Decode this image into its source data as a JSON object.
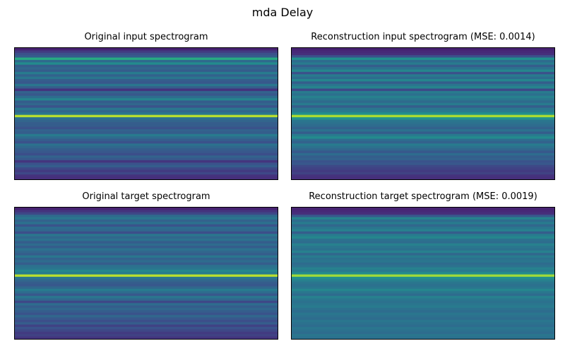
{
  "figure": {
    "title": "mda Delay"
  },
  "chart_data": [
    {
      "type": "heatmap",
      "title": "Original input spectrogram",
      "colormap": "viridis",
      "grid": false,
      "axes_visible": false,
      "bands": [
        0.1,
        0.18,
        0.25,
        0.3,
        0.62,
        0.35,
        0.48,
        0.3,
        0.34,
        0.3,
        0.42,
        0.32,
        0.4,
        0.3,
        0.28,
        0.4,
        0.3,
        0.15,
        0.32,
        0.28,
        0.36,
        0.45,
        0.3,
        0.34,
        0.26,
        0.4,
        0.34,
        0.4,
        0.9,
        0.38,
        0.33,
        0.3,
        0.3,
        0.26,
        0.32,
        0.3,
        0.42,
        0.36,
        0.3,
        0.25,
        0.38,
        0.34,
        0.3,
        0.28,
        0.24,
        0.32,
        0.28,
        0.16,
        0.26,
        0.3,
        0.22,
        0.18,
        0.22,
        0.15,
        0.14
      ]
    },
    {
      "type": "heatmap",
      "title": "Reconstruction input spectrogram (MSE: 0.0014)",
      "colormap": "viridis",
      "grid": false,
      "axes_visible": false,
      "bands": [
        0.1,
        0.12,
        0.14,
        0.25,
        0.5,
        0.36,
        0.42,
        0.3,
        0.38,
        0.46,
        0.25,
        0.42,
        0.36,
        0.46,
        0.3,
        0.4,
        0.45,
        0.22,
        0.42,
        0.38,
        0.44,
        0.4,
        0.35,
        0.42,
        0.3,
        0.4,
        0.42,
        0.5,
        0.88,
        0.52,
        0.4,
        0.38,
        0.36,
        0.32,
        0.38,
        0.3,
        0.42,
        0.48,
        0.36,
        0.32,
        0.42,
        0.38,
        0.34,
        0.28,
        0.36,
        0.3,
        0.32,
        0.26,
        0.28,
        0.22,
        0.2,
        0.18,
        0.2,
        0.15,
        0.14
      ]
    },
    {
      "type": "heatmap",
      "title": "Original target spectrogram",
      "colormap": "viridis",
      "grid": false,
      "axes_visible": false,
      "bands": [
        0.1,
        0.16,
        0.22,
        0.35,
        0.4,
        0.32,
        0.38,
        0.26,
        0.36,
        0.34,
        0.24,
        0.4,
        0.34,
        0.38,
        0.3,
        0.36,
        0.3,
        0.38,
        0.34,
        0.3,
        0.4,
        0.32,
        0.36,
        0.3,
        0.38,
        0.4,
        0.46,
        0.42,
        0.9,
        0.4,
        0.34,
        0.3,
        0.28,
        0.34,
        0.42,
        0.36,
        0.28,
        0.4,
        0.34,
        0.22,
        0.36,
        0.3,
        0.34,
        0.3,
        0.26,
        0.34,
        0.28,
        0.24,
        0.3,
        0.2,
        0.26,
        0.22,
        0.18,
        0.2,
        0.16
      ]
    },
    {
      "type": "heatmap",
      "title": "Reconstruction target spectrogram (MSE: 0.0019)",
      "colormap": "viridis",
      "grid": false,
      "axes_visible": false,
      "bands": [
        0.1,
        0.12,
        0.14,
        0.28,
        0.45,
        0.36,
        0.42,
        0.34,
        0.4,
        0.44,
        0.3,
        0.42,
        0.46,
        0.38,
        0.36,
        0.44,
        0.4,
        0.38,
        0.44,
        0.34,
        0.42,
        0.38,
        0.4,
        0.36,
        0.38,
        0.44,
        0.42,
        0.48,
        0.86,
        0.5,
        0.44,
        0.4,
        0.38,
        0.4,
        0.46,
        0.4,
        0.36,
        0.44,
        0.4,
        0.38,
        0.4,
        0.42,
        0.38,
        0.36,
        0.4,
        0.38,
        0.36,
        0.4,
        0.38,
        0.36,
        0.4,
        0.38,
        0.36,
        0.4,
        0.38
      ]
    }
  ]
}
